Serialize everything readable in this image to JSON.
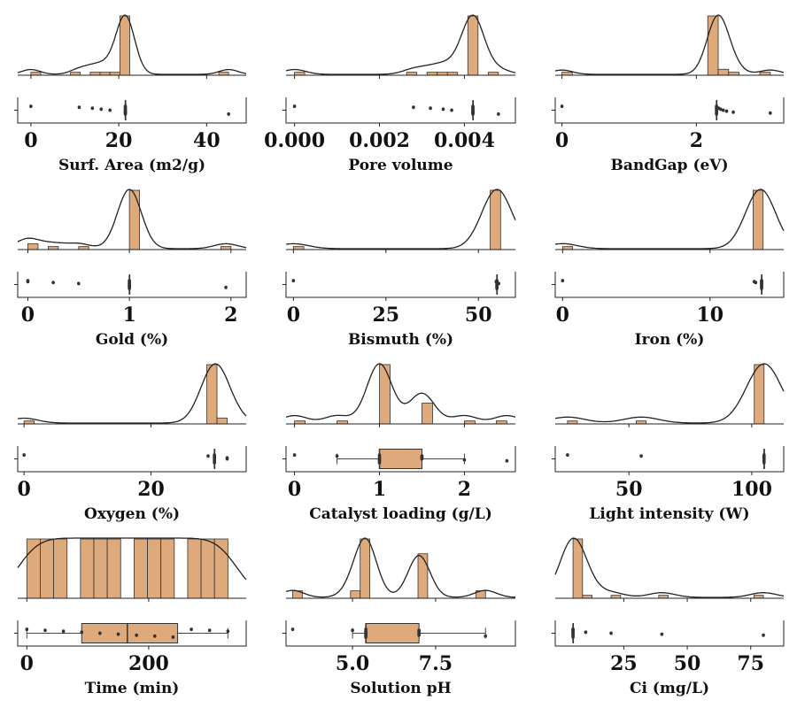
{
  "chart_data": [
    {
      "type": "histogram",
      "xlabel": "Surf. Area (m2/g)",
      "color": "#deaa7b",
      "xlim": [
        -3,
        49
      ],
      "xticks": [
        0,
        20,
        40
      ],
      "bins": [
        0,
        2.25,
        4.5,
        6.75,
        9,
        11.25,
        13.5,
        15.75,
        18,
        20.25,
        22.5,
        24.75,
        27,
        29.25,
        31.5,
        33.75,
        36,
        38.25,
        40.5,
        42.75,
        45
      ],
      "counts": [
        1,
        0,
        0,
        0,
        1,
        0,
        1,
        1,
        1,
        20,
        0,
        0,
        0,
        0,
        0,
        0,
        0,
        0,
        0,
        1
      ],
      "points": [
        0,
        11,
        14,
        16,
        18,
        21.5,
        21.5,
        21.5,
        21.5,
        21.5,
        21.5,
        21.5,
        21.5,
        21.5,
        21.5,
        21.5,
        21.5,
        45
      ],
      "box": {
        "whislo": 21.5,
        "q1": 21.5,
        "med": 21.5,
        "q3": 21.5,
        "whishi": 21.5
      }
    },
    {
      "type": "histogram",
      "xlabel": "Pore volume",
      "color": "#deaa7b",
      "xlim": [
        -0.0002,
        0.0052
      ],
      "xticks": [
        {
          "value": 0,
          "label": "0.000"
        },
        {
          "value": 0.002,
          "label": "0.002"
        },
        {
          "value": 0.004,
          "label": "0.004"
        }
      ],
      "bins": [
        0,
        0.00024,
        0.00048,
        0.00072,
        0.00096,
        0.0012,
        0.00144,
        0.00168,
        0.00192,
        0.00216,
        0.0024,
        0.00264,
        0.00288,
        0.00312,
        0.00336,
        0.0036,
        0.00384,
        0.00408,
        0.00432,
        0.00456,
        0.0048
      ],
      "counts": [
        1,
        0,
        0,
        0,
        0,
        0,
        0,
        0,
        0,
        0,
        0,
        1,
        0,
        1,
        1,
        1,
        0,
        20,
        0,
        1
      ],
      "points": [
        0,
        0.0028,
        0.0032,
        0.0035,
        0.0037,
        0.0042,
        0.0042,
        0.0042,
        0.0042,
        0.0042,
        0.0042,
        0.0042,
        0.0042,
        0.0042,
        0.0042,
        0.0042,
        0.0042,
        0.0048
      ],
      "box": {
        "whislo": 0.0042,
        "q1": 0.0042,
        "med": 0.0042,
        "q3": 0.0042,
        "whishi": 0.0042
      }
    },
    {
      "type": "histogram",
      "xlabel": "BandGap (eV)",
      "color": "#deaa7b",
      "xlim": [
        -0.1,
        3.3
      ],
      "xticks": [
        0,
        2
      ],
      "bins": [
        0,
        0.155,
        0.31,
        0.465,
        0.62,
        0.775,
        0.93,
        1.085,
        1.24,
        1.395,
        1.55,
        1.705,
        1.86,
        2.015,
        2.17,
        2.325,
        2.48,
        2.635,
        2.79,
        2.945,
        3.1
      ],
      "counts": [
        1,
        0,
        0,
        0,
        0,
        0,
        0,
        0,
        0,
        0,
        0,
        0,
        0,
        0,
        20,
        2,
        1,
        0,
        0,
        1
      ],
      "points": [
        0,
        2.3,
        2.3,
        2.3,
        2.3,
        2.3,
        2.3,
        2.3,
        2.3,
        2.3,
        2.3,
        2.33,
        2.36,
        2.4,
        2.45,
        2.55,
        3.1
      ],
      "box": {
        "whislo": 2.3,
        "q1": 2.3,
        "med": 2.3,
        "q3": 2.3,
        "whishi": 2.3
      }
    },
    {
      "type": "histogram",
      "xlabel": "Gold (%)",
      "color": "#deaa7b",
      "xlim": [
        -0.1,
        2.15
      ],
      "xticks": [
        0,
        1,
        2
      ],
      "bins": [
        0,
        0.1,
        0.2,
        0.3,
        0.4,
        0.5,
        0.6,
        0.7,
        0.8,
        0.9,
        1.0,
        1.1,
        1.2,
        1.3,
        1.4,
        1.5,
        1.6,
        1.7,
        1.8,
        1.9,
        2.0
      ],
      "counts": [
        2,
        0,
        1,
        0,
        0,
        1,
        0,
        0,
        0,
        0,
        20,
        0,
        0,
        0,
        0,
        0,
        0,
        0,
        0,
        1
      ],
      "points": [
        0,
        0,
        0.25,
        0.5,
        1,
        1,
        1,
        1,
        1,
        1,
        1,
        1,
        1,
        1,
        1,
        1,
        1.95
      ],
      "box": {
        "whislo": 1,
        "q1": 1,
        "med": 1,
        "q3": 1,
        "whishi": 1
      }
    },
    {
      "type": "histogram",
      "xlabel": "Bismuth (%)",
      "color": "#deaa7b",
      "xlim": [
        -2,
        60
      ],
      "xticks": [
        0,
        25,
        50
      ],
      "bins": [
        0,
        2.8,
        5.6,
        8.4,
        11.2,
        14,
        16.8,
        19.6,
        22.4,
        25.2,
        28,
        30.8,
        33.6,
        36.4,
        39.2,
        42,
        44.8,
        47.6,
        50.4,
        53.2,
        56
      ],
      "counts": [
        1,
        0,
        0,
        0,
        0,
        0,
        0,
        0,
        0,
        0,
        0,
        0,
        0,
        0,
        0,
        0,
        0,
        0,
        0,
        20
      ],
      "points": [
        0,
        54.8,
        55,
        55,
        55,
        55,
        55,
        55,
        55,
        55,
        55,
        55,
        55.5
      ],
      "box": {
        "whislo": 55,
        "q1": 55,
        "med": 55,
        "q3": 55,
        "whishi": 55
      }
    },
    {
      "type": "histogram",
      "xlabel": "Iron (%)",
      "color": "#deaa7b",
      "xlim": [
        -0.5,
        15
      ],
      "xticks": [
        0,
        10
      ],
      "bins": [
        0,
        0.68,
        1.36,
        2.04,
        2.72,
        3.4,
        4.08,
        4.76,
        5.44,
        6.12,
        6.8,
        7.48,
        8.16,
        8.84,
        9.52,
        10.2,
        10.88,
        11.56,
        12.24,
        12.92,
        13.6
      ],
      "counts": [
        1,
        0,
        0,
        0,
        0,
        0,
        0,
        0,
        0,
        0,
        0,
        0,
        0,
        0,
        0,
        0,
        0,
        0,
        0,
        20
      ],
      "points": [
        0,
        13,
        13.1,
        13.5,
        13.5,
        13.5,
        13.5,
        13.5,
        13.5,
        13.5,
        13.5,
        13.5,
        13.5
      ],
      "box": {
        "whislo": 13.5,
        "q1": 13.5,
        "med": 13.5,
        "q3": 13.5,
        "whishi": 13.5
      }
    },
    {
      "type": "histogram",
      "xlabel": "Oxygen (%)",
      "color": "#deaa7b",
      "xlim": [
        -1,
        35
      ],
      "xticks": [
        0,
        20
      ],
      "bins": [
        0,
        1.6,
        3.2,
        4.8,
        6.4,
        8,
        9.6,
        11.2,
        12.8,
        14.4,
        16,
        17.6,
        19.2,
        20.8,
        22.4,
        24,
        25.6,
        27.2,
        28.8,
        30.4,
        32
      ],
      "counts": [
        1,
        0,
        0,
        0,
        0,
        0,
        0,
        0,
        0,
        0,
        0,
        0,
        0,
        0,
        0,
        0,
        0,
        0,
        20,
        2
      ],
      "points": [
        0,
        29,
        30,
        30,
        30,
        30,
        30,
        30,
        30,
        30,
        30,
        30,
        32,
        32
      ],
      "box": {
        "whislo": 30,
        "q1": 30,
        "med": 30,
        "q3": 30,
        "whishi": 30
      }
    },
    {
      "type": "histogram",
      "xlabel": "Catalyst loading (g/L)",
      "color": "#deaa7b",
      "xlim": [
        -0.1,
        2.6
      ],
      "xticks": [
        0,
        1,
        2
      ],
      "bins": [
        0,
        0.125,
        0.25,
        0.375,
        0.5,
        0.625,
        0.75,
        0.875,
        1.0,
        1.125,
        1.25,
        1.375,
        1.5,
        1.625,
        1.75,
        1.875,
        2.0,
        2.125,
        2.25,
        2.375,
        2.5
      ],
      "counts": [
        1,
        0,
        0,
        0,
        1,
        0,
        0,
        0,
        20,
        0,
        0,
        0,
        7,
        0,
        0,
        0,
        1,
        0,
        0,
        1
      ],
      "points": [
        0,
        0.5,
        1,
        1,
        1,
        1,
        1,
        1,
        1,
        1,
        1.5,
        1.5,
        1.5,
        1.5,
        2,
        2.5
      ],
      "box": {
        "whislo": 0.5,
        "q1": 1,
        "med": 1,
        "q3": 1.5,
        "whishi": 2
      }
    },
    {
      "type": "histogram",
      "xlabel": "Light intensity (W)",
      "color": "#deaa7b",
      "xlim": [
        20,
        113
      ],
      "xticks": [
        50,
        100
      ],
      "bins": [
        25,
        29,
        33,
        37,
        41,
        45,
        49,
        53,
        57,
        61,
        65,
        69,
        73,
        77,
        81,
        85,
        89,
        93,
        97,
        101,
        105
      ],
      "counts": [
        1,
        0,
        0,
        0,
        0,
        0,
        0,
        1,
        0,
        0,
        0,
        0,
        0,
        0,
        0,
        0,
        0,
        0,
        0,
        20
      ],
      "points": [
        25,
        55,
        105,
        105,
        105,
        105,
        105,
        105,
        105,
        105,
        105,
        105
      ],
      "box": {
        "whislo": 105,
        "q1": 105,
        "med": 105,
        "q3": 105,
        "whishi": 105
      }
    },
    {
      "type": "histogram",
      "xlabel": "Time (min)",
      "color": "#deaa7b",
      "xlim": [
        -15,
        360
      ],
      "xticks": [
        0,
        200
      ],
      "bins": [
        0,
        22,
        44,
        66,
        88,
        110,
        132,
        154,
        176,
        198,
        220,
        242,
        264,
        286,
        308,
        330
      ],
      "counts": [
        1,
        1,
        1,
        0,
        1,
        1,
        1,
        0,
        1,
        1,
        1,
        0,
        1,
        1,
        1
      ],
      "points": [
        0,
        30,
        60,
        90,
        120,
        150,
        180,
        210,
        240,
        270,
        300,
        330
      ],
      "box": {
        "whislo": 0,
        "q1": 90,
        "med": 165,
        "q3": 247.5,
        "whishi": 330
      }
    },
    {
      "type": "histogram",
      "xlabel": "Solution pH",
      "color": "#deaa7b",
      "xlim": [
        3,
        9.9
      ],
      "xticks": [
        {
          "value": 5,
          "label": "5.0"
        },
        {
          "value": 7.5,
          "label": "7.5"
        }
      ],
      "bins": [
        3.2,
        3.49,
        3.78,
        4.07,
        4.36,
        4.65,
        4.94,
        5.23,
        5.52,
        5.81,
        6.1,
        6.39,
        6.68,
        6.97,
        7.26,
        7.55,
        7.84,
        8.13,
        8.42,
        8.71,
        9.0
      ],
      "counts": [
        1,
        0,
        0,
        0,
        0,
        0,
        1,
        8,
        0,
        0,
        0,
        0,
        0,
        6,
        0,
        0,
        0,
        0,
        0,
        1
      ],
      "points": [
        3.2,
        5,
        5.4,
        5.4,
        5.4,
        5.4,
        5.4,
        5.4,
        5.4,
        5.4,
        7,
        7,
        7,
        7,
        7,
        7,
        9
      ],
      "box": {
        "whislo": 5,
        "q1": 5.4,
        "med": 5.4,
        "q3": 7,
        "whishi": 9
      }
    },
    {
      "type": "histogram",
      "xlabel": "Ci (mg/L)",
      "color": "#deaa7b",
      "xlim": [
        -2,
        88
      ],
      "xticks": [
        25,
        50,
        75
      ],
      "bins": [
        5,
        8.75,
        12.5,
        16.25,
        20,
        23.75,
        27.5,
        31.25,
        35,
        38.75,
        42.5,
        46.25,
        50,
        53.75,
        57.5,
        61.25,
        65,
        68.75,
        72.5,
        76.25,
        80
      ],
      "counts": [
        20,
        1,
        0,
        0,
        1,
        0,
        0,
        0,
        0,
        1,
        0,
        0,
        0,
        0,
        0,
        0,
        0,
        0,
        0,
        1
      ],
      "points": [
        5,
        5,
        5,
        5,
        5,
        5,
        5,
        5,
        5,
        5,
        5,
        5,
        10,
        20,
        40,
        80
      ],
      "box": {
        "whislo": 5,
        "q1": 5,
        "med": 5,
        "q3": 5,
        "whishi": 5
      }
    }
  ]
}
